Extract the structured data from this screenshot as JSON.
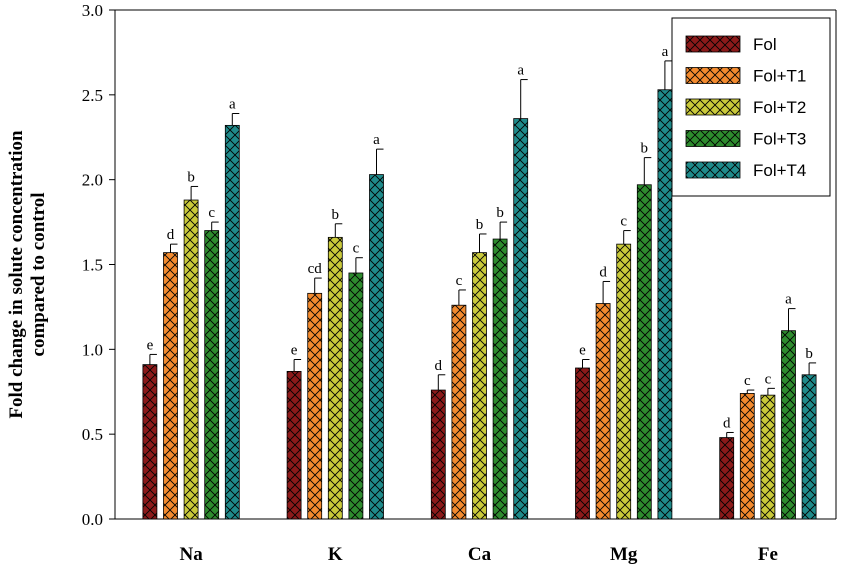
{
  "chart_data": {
    "type": "bar",
    "title": "",
    "xlabel": "",
    "ylabel": "Fold change in solute concentration compared to control",
    "ylabel_lines": [
      "Fold change in solute concentration",
      "compared to control"
    ],
    "ylim": [
      0,
      3.0
    ],
    "yticks": [
      "0.0",
      "0.5",
      "1.0",
      "1.5",
      "2.0",
      "2.5",
      "3.0"
    ],
    "grid": false,
    "legend_position": "top-right",
    "categories": [
      "Na",
      "K",
      "Ca",
      "Mg",
      "Fe"
    ],
    "series": [
      {
        "name": "Fol",
        "color": "#8b1a1a",
        "values": [
          0.91,
          0.87,
          0.76,
          0.89,
          0.48
        ],
        "errors": [
          0.06,
          0.07,
          0.09,
          0.05,
          0.03
        ],
        "letters": [
          "e",
          "e",
          "d",
          "e",
          "d"
        ]
      },
      {
        "name": "Fol+T1",
        "color": "#f28a2e",
        "values": [
          1.57,
          1.33,
          1.26,
          1.27,
          0.74
        ],
        "errors": [
          0.05,
          0.09,
          0.09,
          0.13,
          0.02
        ],
        "letters": [
          "d",
          "cd",
          "c",
          "d",
          "c"
        ]
      },
      {
        "name": "Fol+T2",
        "color": "#c9c93a",
        "values": [
          1.88,
          1.66,
          1.57,
          1.62,
          0.73
        ],
        "errors": [
          0.08,
          0.08,
          0.11,
          0.08,
          0.04
        ],
        "letters": [
          "b",
          "b",
          "b",
          "c",
          "c"
        ]
      },
      {
        "name": "Fol+T3",
        "color": "#2e8b2e",
        "values": [
          1.7,
          1.45,
          1.65,
          1.97,
          1.11
        ],
        "errors": [
          0.05,
          0.09,
          0.1,
          0.16,
          0.13
        ],
        "letters": [
          "c",
          "c",
          "b",
          "b",
          "a"
        ]
      },
      {
        "name": "Fol+T4",
        "color": "#1f8a8a",
        "values": [
          2.32,
          2.03,
          2.36,
          2.53,
          0.85
        ],
        "errors": [
          0.07,
          0.15,
          0.23,
          0.17,
          0.07
        ],
        "letters": [
          "a",
          "a",
          "a",
          "a",
          "b"
        ]
      }
    ]
  }
}
